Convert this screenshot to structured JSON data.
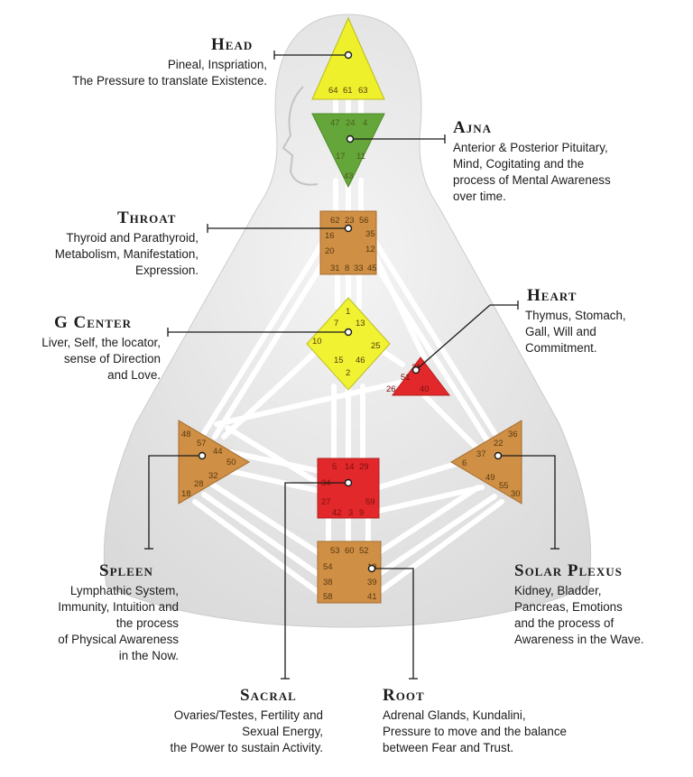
{
  "colors": {
    "head": "#eef02c",
    "ajna": "#64a63a",
    "throat": "#cf8f45",
    "g_center": "#f0f232",
    "heart": "#e2282a",
    "spleen": "#cf8f45",
    "sacral": "#e2282a",
    "solar_plexus": "#cf8f45",
    "root": "#cf8f45",
    "body": "#e7e7e7",
    "channel": "#ffffff",
    "callout": "#1a1a1a"
  },
  "centers": {
    "head": {
      "title": "Head",
      "desc": [
        "Pineal, Inspriation,",
        "The Pressure to translate Existence."
      ],
      "gates": [
        "64",
        "61",
        "63"
      ]
    },
    "ajna": {
      "title": "Ajna",
      "desc": [
        "Anterior & Posterior Pituitary,",
        "Mind, Cogitating and the",
        "process of Mental Awareness",
        "over time."
      ],
      "gates": [
        "47",
        "24",
        "4",
        "17",
        "11",
        "43"
      ]
    },
    "throat": {
      "title": "Throat",
      "desc": [
        "Thyroid and Parathyroid,",
        "Metabolism, Manifestation,",
        "Expression."
      ],
      "gates": [
        "62",
        "23",
        "56",
        "16",
        "35",
        "20",
        "12",
        "31",
        "8",
        "33",
        "45"
      ]
    },
    "g_center": {
      "title": "G Center",
      "desc": [
        "Liver, Self, the locator,",
        "sense of Direction",
        "and Love."
      ],
      "gates": [
        "1",
        "7",
        "13",
        "10",
        "25",
        "15",
        "46",
        "2"
      ]
    },
    "heart": {
      "title": "Heart",
      "desc": [
        "Thymus, Stomach,",
        "Gall, Will and",
        "Commitment."
      ],
      "gates": [
        "21",
        "51",
        "26",
        "40"
      ]
    },
    "spleen": {
      "title": "Spleen",
      "desc": [
        "Lymphathic System,",
        "Immunity, Intuition and",
        "the process",
        "of Physical Awareness",
        "in the Now."
      ],
      "gates": [
        "48",
        "57",
        "44",
        "50",
        "32",
        "28",
        "18"
      ]
    },
    "sacral": {
      "title": "Sacral",
      "desc": [
        "Ovaries/Testes, Fertility and",
        "Sexual Energy,",
        "the Power to sustain Activity."
      ],
      "gates": [
        "5",
        "14",
        "29",
        "34",
        "27",
        "59",
        "42",
        "3",
        "9"
      ]
    },
    "solar_plexus": {
      "title": "Solar Plexus",
      "desc": [
        "Kidney, Bladder,",
        "Pancreas,  Emotions",
        "and the process of",
        "Awareness in the Wave."
      ],
      "gates": [
        "36",
        "37",
        "22",
        "6",
        "49",
        "55",
        "30"
      ]
    },
    "root": {
      "title": "Root",
      "desc": [
        "Adrenal Glands, Kundalini,",
        "Pressure to move and the balance",
        "between Fear and Trust."
      ],
      "gates": [
        "53",
        "60",
        "52",
        "54",
        "19",
        "38",
        "39",
        "58",
        "41"
      ]
    }
  }
}
